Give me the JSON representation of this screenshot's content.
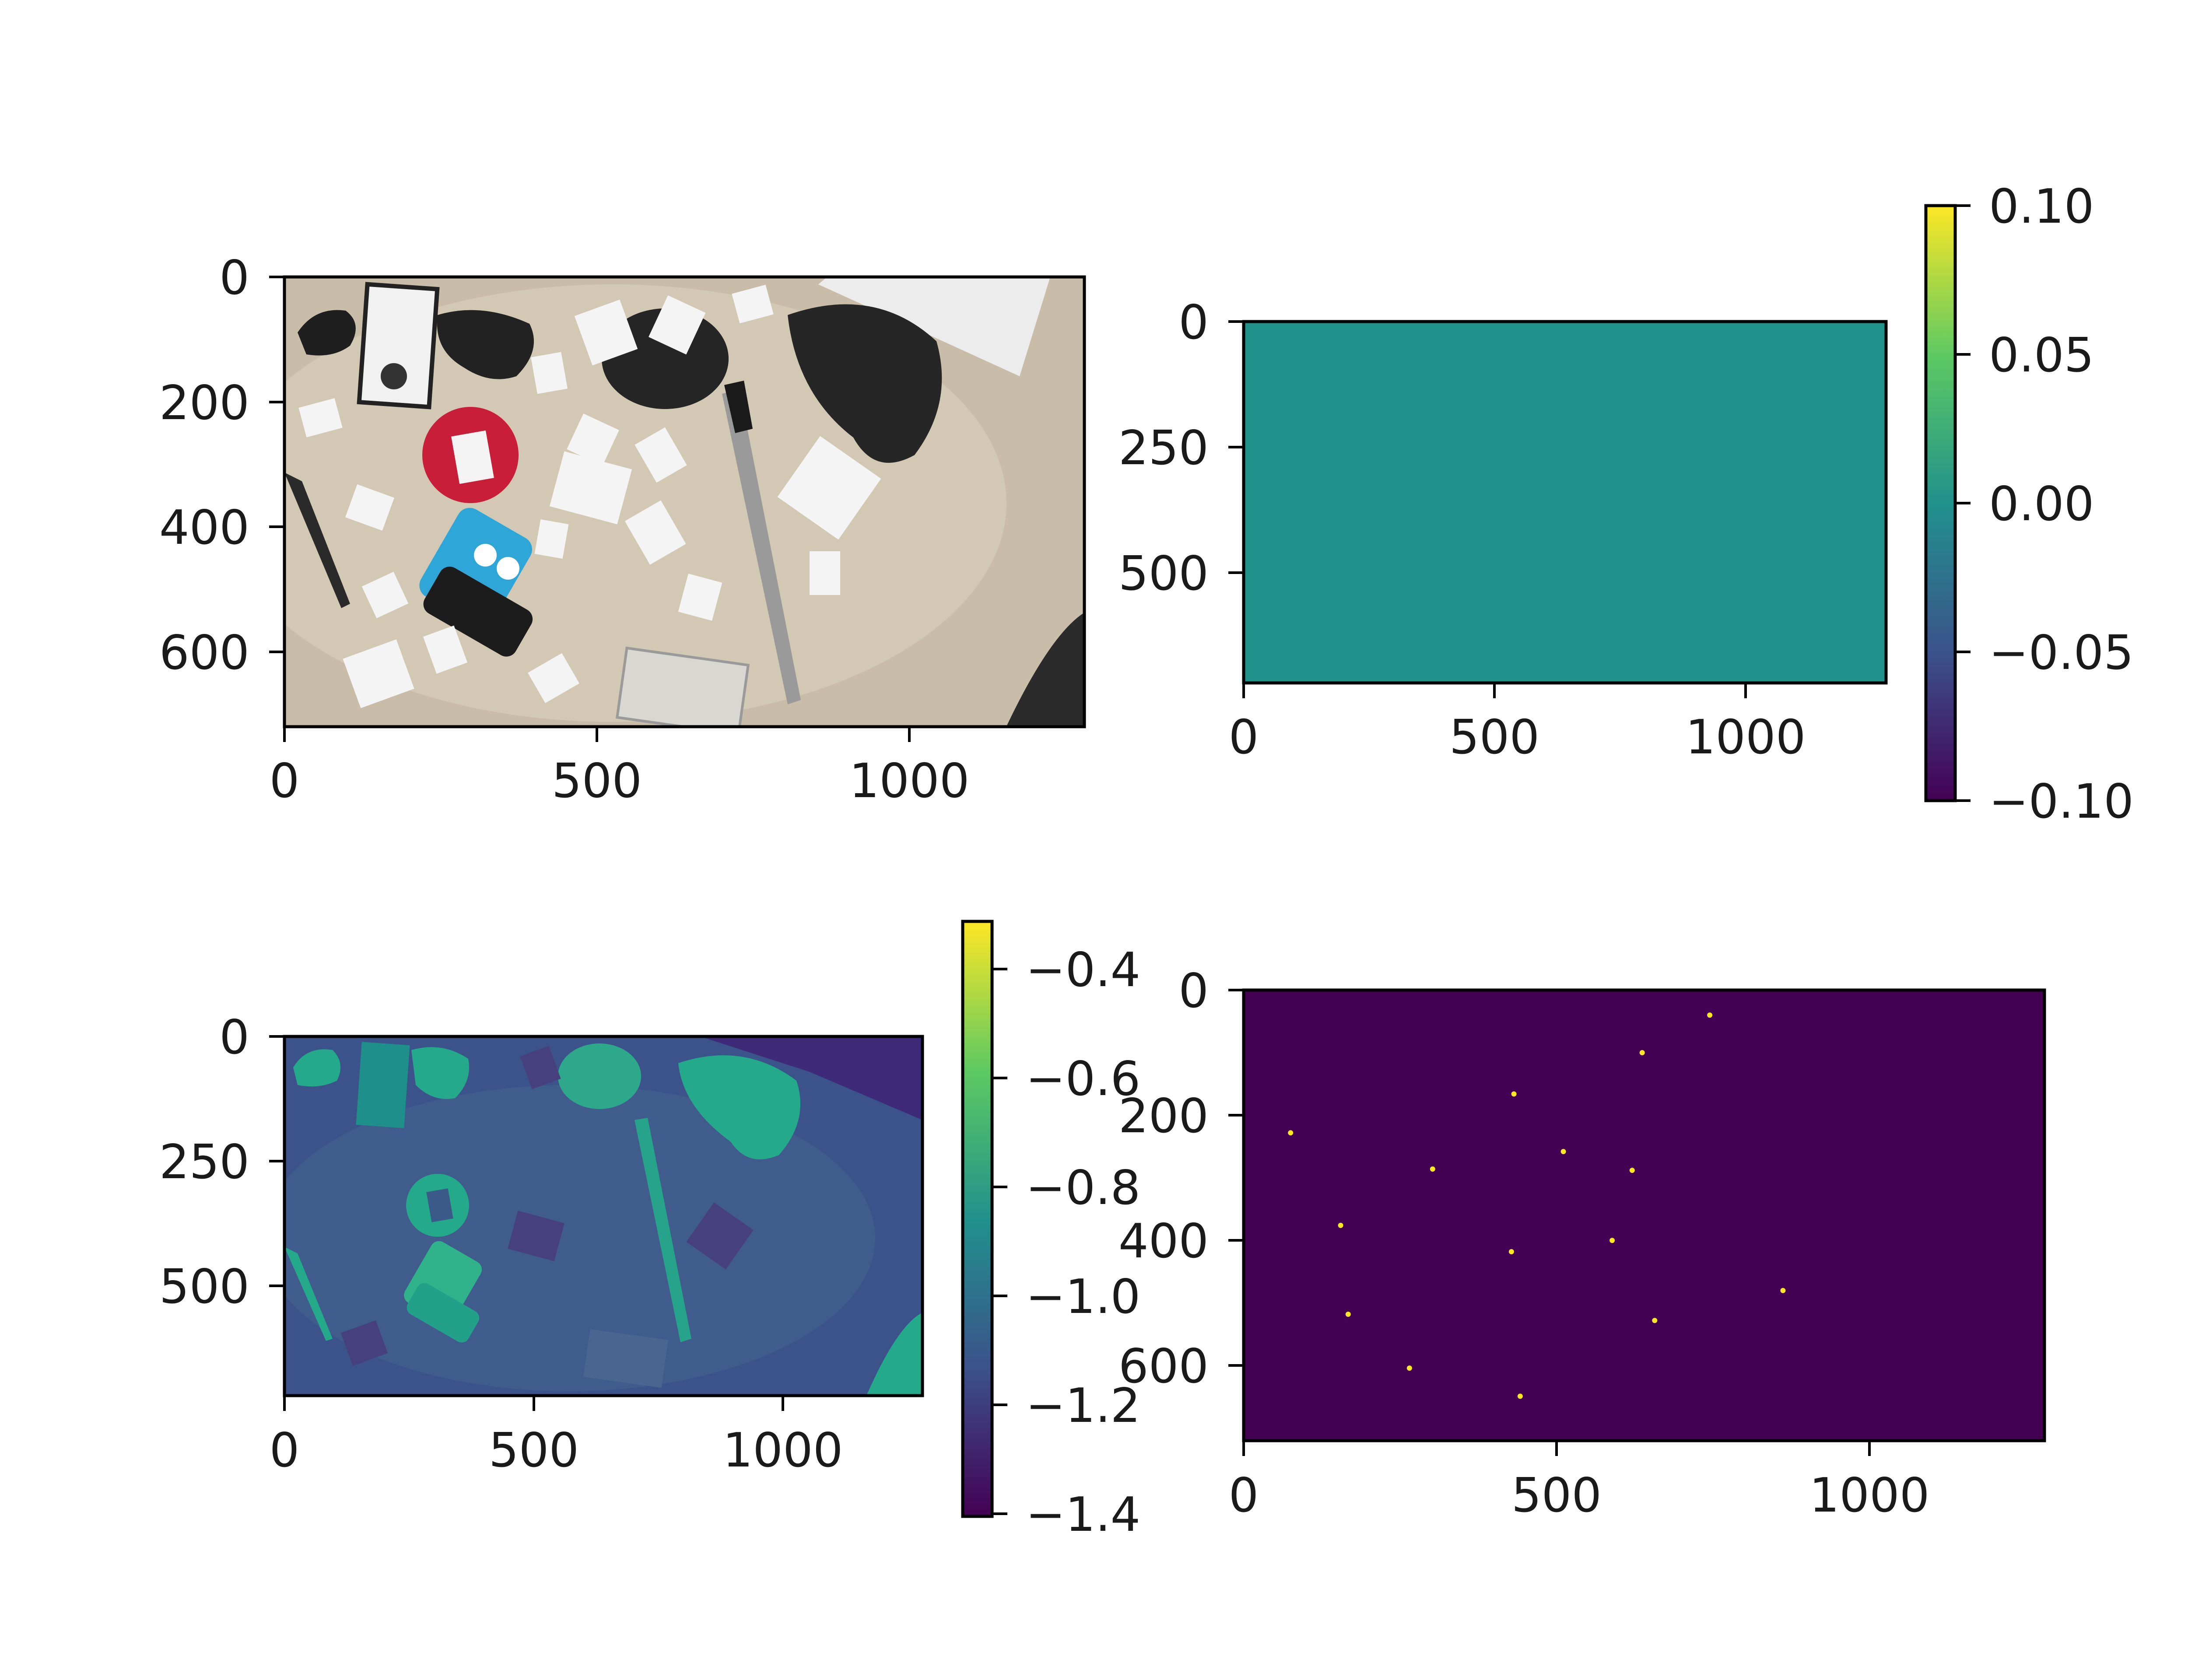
{
  "chart_data": [
    {
      "type": "image",
      "content": "photograph of a table top with paper letter cards (A, B, C, X), a pen, a blue toy, black cut-outs",
      "xlim": [
        0,
        1280
      ],
      "ylim": [
        720,
        0
      ],
      "x_ticks": [
        "0",
        "500",
        "1000"
      ],
      "y_ticks": [
        "0",
        "200",
        "400",
        "600"
      ],
      "colors": {
        "table": "#c9bda9",
        "shadow": "#2a2a2a",
        "card": "#f2f2f2",
        "red_disc": "#c81e3a",
        "blue_toy": "#2fa6d8"
      }
    },
    {
      "type": "heatmap",
      "values_constant": 0.0,
      "xlim": [
        0,
        1280
      ],
      "ylim": [
        720,
        0
      ],
      "x_ticks": [
        "0",
        "500",
        "1000"
      ],
      "y_ticks": [
        "0",
        "250",
        "500"
      ],
      "colorbar": {
        "min": -0.1,
        "max": 0.1,
        "ticks": [
          "0.10",
          "0.05",
          "0.00",
          "−0.05",
          "−0.10"
        ]
      },
      "colors": {
        "fill": "#21918c"
      }
    },
    {
      "type": "heatmap",
      "content": "single-channel rendering of the same table-top image",
      "xlim": [
        0,
        1280
      ],
      "ylim": [
        720,
        0
      ],
      "x_ticks": [
        "0",
        "500",
        "1000"
      ],
      "y_ticks": [
        "0",
        "250",
        "500"
      ],
      "colorbar": {
        "min": -1.42,
        "max": -0.3,
        "ticks": [
          "−0.4",
          "−0.6",
          "−0.8",
          "−1.0",
          "−1.2",
          "−1.4"
        ]
      },
      "colors": {
        "background": "#3b528b",
        "objects": "#25a98b",
        "dark": "#3e2a79"
      }
    },
    {
      "type": "scatter",
      "content": "sparse bright points on a dark background",
      "xlim": [
        0,
        1280
      ],
      "ylim": [
        720,
        0
      ],
      "x_ticks": [
        "0",
        "500",
        "1000"
      ],
      "y_ticks": [
        "0",
        "200",
        "400",
        "600"
      ],
      "points": [
        {
          "x": 745,
          "y": 40
        },
        {
          "x": 637,
          "y": 100
        },
        {
          "x": 432,
          "y": 166
        },
        {
          "x": 75,
          "y": 228
        },
        {
          "x": 511,
          "y": 258
        },
        {
          "x": 302,
          "y": 286
        },
        {
          "x": 621,
          "y": 288
        },
        {
          "x": 155,
          "y": 376
        },
        {
          "x": 589,
          "y": 400
        },
        {
          "x": 428,
          "y": 418
        },
        {
          "x": 862,
          "y": 480
        },
        {
          "x": 167,
          "y": 518
        },
        {
          "x": 657,
          "y": 528
        },
        {
          "x": 265,
          "y": 604
        },
        {
          "x": 442,
          "y": 649
        }
      ],
      "colors": {
        "background": "#440154",
        "point": "#fde725"
      }
    }
  ]
}
